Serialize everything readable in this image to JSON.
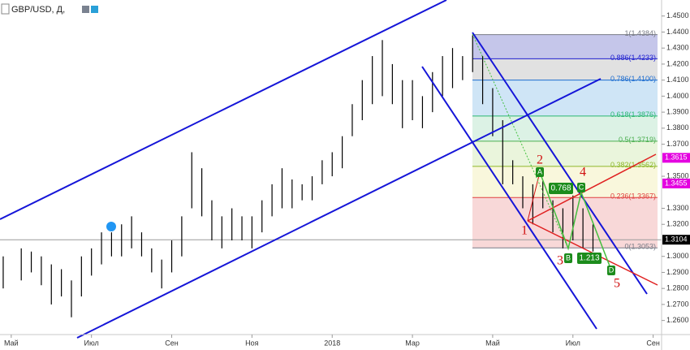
{
  "chart_data": {
    "type": "range",
    "title": "GBP/USD, Д,",
    "x": [
      -0.2,
      0.25,
      0.5,
      0.75,
      1.0,
      1.25,
      1.5,
      1.75,
      2.0,
      2.25,
      2.5,
      2.75,
      3.0,
      3.25,
      3.5,
      3.75,
      4.0,
      4.25,
      4.5,
      4.75,
      5.0,
      5.25,
      5.5,
      5.75,
      6.0,
      6.25,
      6.5,
      6.75,
      7.0,
      7.25,
      7.5,
      7.75,
      8.0,
      8.25,
      8.5,
      8.75,
      9.0,
      9.25,
      9.5,
      9.75,
      10.0,
      10.25,
      10.5,
      10.75,
      11.0,
      11.25,
      11.5,
      11.75,
      12.0,
      12.25,
      12.5,
      12.75,
      13.0,
      13.25,
      13.5,
      13.75,
      14.0,
      14.25,
      14.5
    ],
    "high": [
      1.3,
      1.305,
      1.303,
      1.3,
      1.295,
      1.292,
      1.285,
      1.3,
      1.305,
      1.315,
      1.315,
      1.32,
      1.325,
      1.315,
      1.305,
      1.298,
      1.31,
      1.325,
      1.365,
      1.355,
      1.335,
      1.325,
      1.33,
      1.325,
      1.325,
      1.335,
      1.345,
      1.355,
      1.348,
      1.345,
      1.35,
      1.36,
      1.365,
      1.375,
      1.395,
      1.41,
      1.425,
      1.435,
      1.42,
      1.41,
      1.41,
      1.4,
      1.415,
      1.425,
      1.43,
      1.425,
      1.438,
      1.425,
      1.405,
      1.385,
      1.36,
      1.35,
      1.345,
      1.347,
      1.335,
      1.33,
      1.338,
      1.33,
      1.32
    ],
    "low": [
      1.28,
      1.285,
      1.29,
      1.282,
      1.27,
      1.275,
      1.262,
      1.275,
      1.288,
      1.295,
      1.3,
      1.3,
      1.305,
      1.3,
      1.29,
      1.28,
      1.29,
      1.3,
      1.33,
      1.325,
      1.31,
      1.305,
      1.31,
      1.31,
      1.305,
      1.315,
      1.325,
      1.33,
      1.33,
      1.335,
      1.335,
      1.345,
      1.35,
      1.355,
      1.375,
      1.385,
      1.395,
      1.4,
      1.395,
      1.38,
      1.385,
      1.38,
      1.39,
      1.4,
      1.405,
      1.41,
      1.415,
      1.395,
      1.375,
      1.345,
      1.345,
      1.33,
      1.32,
      1.33,
      1.315,
      1.305,
      1.31,
      1.305,
      1.303
    ],
    "color": "#000000",
    "xlim": [
      -0.28,
      16.21
    ],
    "ylim": [
      1.2512,
      1.46
    ],
    "xticks": [
      {
        "value": 0,
        "label": "Май"
      },
      {
        "value": 2,
        "label": "Июл"
      },
      {
        "value": 4,
        "label": "Сен"
      },
      {
        "value": 6,
        "label": "Ноя"
      },
      {
        "value": 8,
        "label": "2018"
      },
      {
        "value": 10,
        "label": "Мар"
      },
      {
        "value": 12,
        "label": "Май"
      },
      {
        "value": 14,
        "label": "Июл"
      },
      {
        "value": 16,
        "label": "Сен"
      }
    ],
    "yticks": [
      {
        "value": 1.26,
        "label": "1.2600"
      },
      {
        "value": 1.27,
        "label": "1.2700"
      },
      {
        "value": 1.28,
        "label": "1.2800"
      },
      {
        "value": 1.29,
        "label": "1.2900"
      },
      {
        "value": 1.3,
        "label": "1.3000"
      },
      {
        "value": 1.32,
        "label": "1.3200"
      },
      {
        "value": 1.33,
        "label": "1.3300"
      },
      {
        "value": 1.35,
        "label": "1.3500"
      },
      {
        "value": 1.37,
        "label": "1.3700"
      },
      {
        "value": 1.38,
        "label": "1.3800"
      },
      {
        "value": 1.39,
        "label": "1.3900"
      },
      {
        "value": 1.4,
        "label": "1.4000"
      },
      {
        "value": 1.41,
        "label": "1.4100"
      },
      {
        "value": 1.42,
        "label": "1.4200"
      },
      {
        "value": 1.43,
        "label": "1.4300"
      },
      {
        "value": 1.44,
        "label": "1.4400"
      },
      {
        "value": 1.45,
        "label": "1.4500"
      }
    ],
    "price_labels": [
      {
        "value": 1.3615,
        "label": "1.3615",
        "color": "#e400e0"
      },
      {
        "value": 1.3455,
        "label": "1.3455",
        "color": "#e400e0"
      },
      {
        "value": 1.3104,
        "label": "1.3104",
        "color": "#000000"
      }
    ],
    "fib_levels": [
      {
        "value": 1.4384,
        "label": "1(1.4384)",
        "color": "#787b86",
        "band": "#9598d8"
      },
      {
        "value": 1.4233,
        "label": "0.886(1.4233)",
        "color": "#1e1ed0",
        "band": "#c8c8c8"
      },
      {
        "value": 1.41,
        "label": "0.786(1.4100)",
        "color": "#1e6ed0",
        "band": "#a8d0ee"
      },
      {
        "value": 1.3876,
        "label": "0.618(1.3876)",
        "color": "#2ab870",
        "band": "#bfe8cf"
      },
      {
        "value": 1.3719,
        "label": "0.5(1.3719)",
        "color": "#4caf50",
        "band": "#d8ecc0"
      },
      {
        "value": 1.3562,
        "label": "0.382(1.3562)",
        "color": "#8fb82a",
        "band": "#f4f0c0"
      },
      {
        "value": 1.3367,
        "label": "0.236(1.3367)",
        "color": "#e04040",
        "band": "#f2b8b8"
      },
      {
        "value": 1.3053,
        "label": "0(1.3053)",
        "color": "#787b86"
      }
    ],
    "waves": [
      "1",
      "2",
      "3",
      "4",
      "5"
    ],
    "pattern_points": [
      "A",
      "B",
      "C",
      "D"
    ],
    "ratios": [
      "0.768",
      "1.213"
    ]
  }
}
